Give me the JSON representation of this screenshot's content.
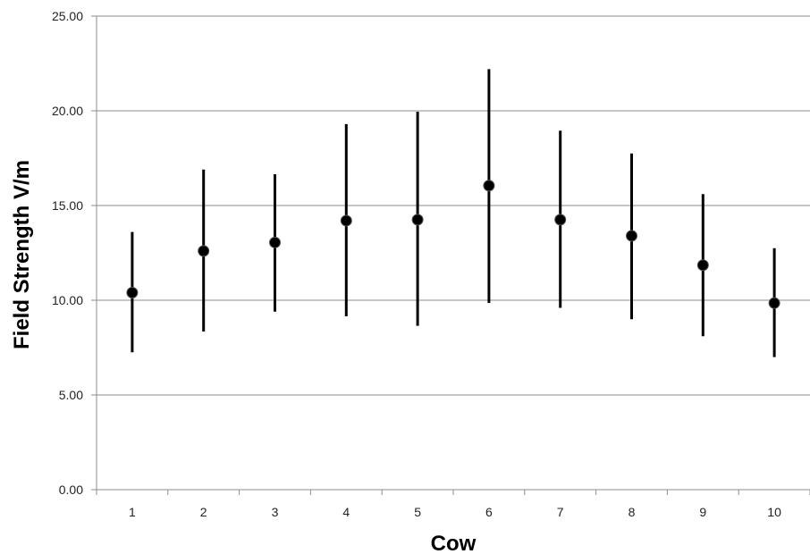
{
  "chart_data": {
    "type": "scatter",
    "title": "",
    "xlabel": "Cow",
    "ylabel": "Field Strength V/m",
    "categories": [
      "1",
      "2",
      "3",
      "4",
      "5",
      "6",
      "7",
      "8",
      "9",
      "10"
    ],
    "ylim": [
      0,
      25
    ],
    "yticks": [
      "0.00",
      "5.00",
      "10.00",
      "15.00",
      "20.00",
      "25.00"
    ],
    "yticks_values": [
      0,
      5,
      10,
      15,
      20,
      25
    ],
    "grid": "horizontal",
    "legend": "none",
    "series": [
      {
        "values": [
          10.4,
          12.6,
          13.05,
          14.2,
          14.25,
          16.05,
          14.25,
          13.4,
          11.85,
          9.85
        ],
        "error_low": [
          7.25,
          8.35,
          9.4,
          9.15,
          8.65,
          9.85,
          9.6,
          9.0,
          8.1,
          7.0
        ],
        "error_high": [
          13.6,
          16.9,
          16.65,
          19.3,
          19.95,
          22.2,
          18.95,
          17.75,
          15.6,
          12.75
        ]
      }
    ],
    "colors": {
      "marker": "#000000",
      "errorbar": "#000000",
      "grid": "#8c8c8c",
      "axis": "#8c8c8c"
    }
  }
}
